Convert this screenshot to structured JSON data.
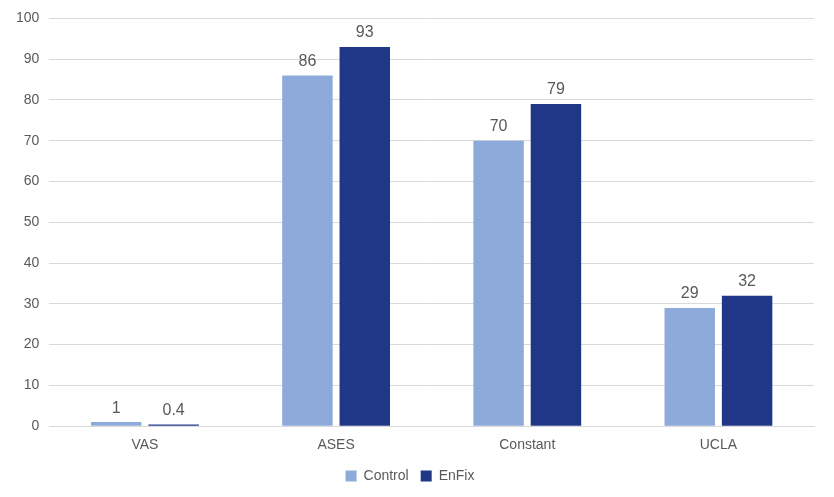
{
  "chart_data": {
    "type": "bar",
    "categories": [
      "VAS",
      "ASES",
      "Constant",
      "UCLA"
    ],
    "series": [
      {
        "name": "Control",
        "color": "#8eaadb",
        "values": [
          1,
          86,
          70,
          29
        ]
      },
      {
        "name": "EnFix",
        "color": "#1f3786",
        "values": [
          0.4,
          93,
          79,
          32
        ]
      }
    ],
    "ylim": [
      0,
      100
    ],
    "yticks": [
      0,
      10,
      20,
      30,
      40,
      50,
      60,
      70,
      80,
      90,
      100
    ],
    "grid": true,
    "legend": "bottom",
    "data_labels": true
  }
}
